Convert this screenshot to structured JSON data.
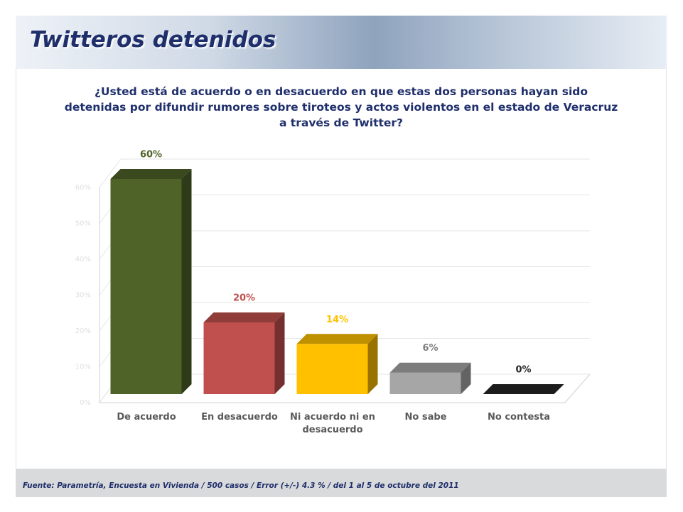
{
  "header": {
    "title": "Twitteros detenidos"
  },
  "chart_data": {
    "type": "bar3d",
    "title": "¿Usted está de acuerdo o en desacuerdo en que estas dos personas hayan sido detenidas por difundir rumores sobre tiroteos y actos violentos en el estado de Veracruz a través de Twitter?",
    "categories": [
      "De acuerdo",
      "En desacuerdo",
      "Ni acuerdo ni en desacuerdo",
      "No sabe",
      "No contesta"
    ],
    "values": [
      60,
      20,
      14,
      6,
      0
    ],
    "value_labels": [
      "60%",
      "20%",
      "14%",
      "6%",
      "0%"
    ],
    "colors": [
      "#4f6228",
      "#c0504d",
      "#ffc000",
      "#a6a6a6",
      "#262626"
    ],
    "label_colors": [
      "#4f6228",
      "#c0504d",
      "#ffc000",
      "#7f7f7f",
      "#262626"
    ],
    "ylim": [
      0,
      60
    ],
    "yticks": [
      {
        "value": 0,
        "label": "0%"
      },
      {
        "value": 10,
        "label": "10%"
      },
      {
        "value": 20,
        "label": "20%"
      },
      {
        "value": 30,
        "label": "30%"
      },
      {
        "value": 40,
        "label": "40%"
      },
      {
        "value": 50,
        "label": "50%"
      },
      {
        "value": 60,
        "label": "60%"
      }
    ],
    "grid": true
  },
  "footer": {
    "source": "Fuente: Parametría, Encuesta en Vivienda / 500 casos / Error (+/-) 4.3 % / del 1 al 5 de octubre del 2011"
  }
}
